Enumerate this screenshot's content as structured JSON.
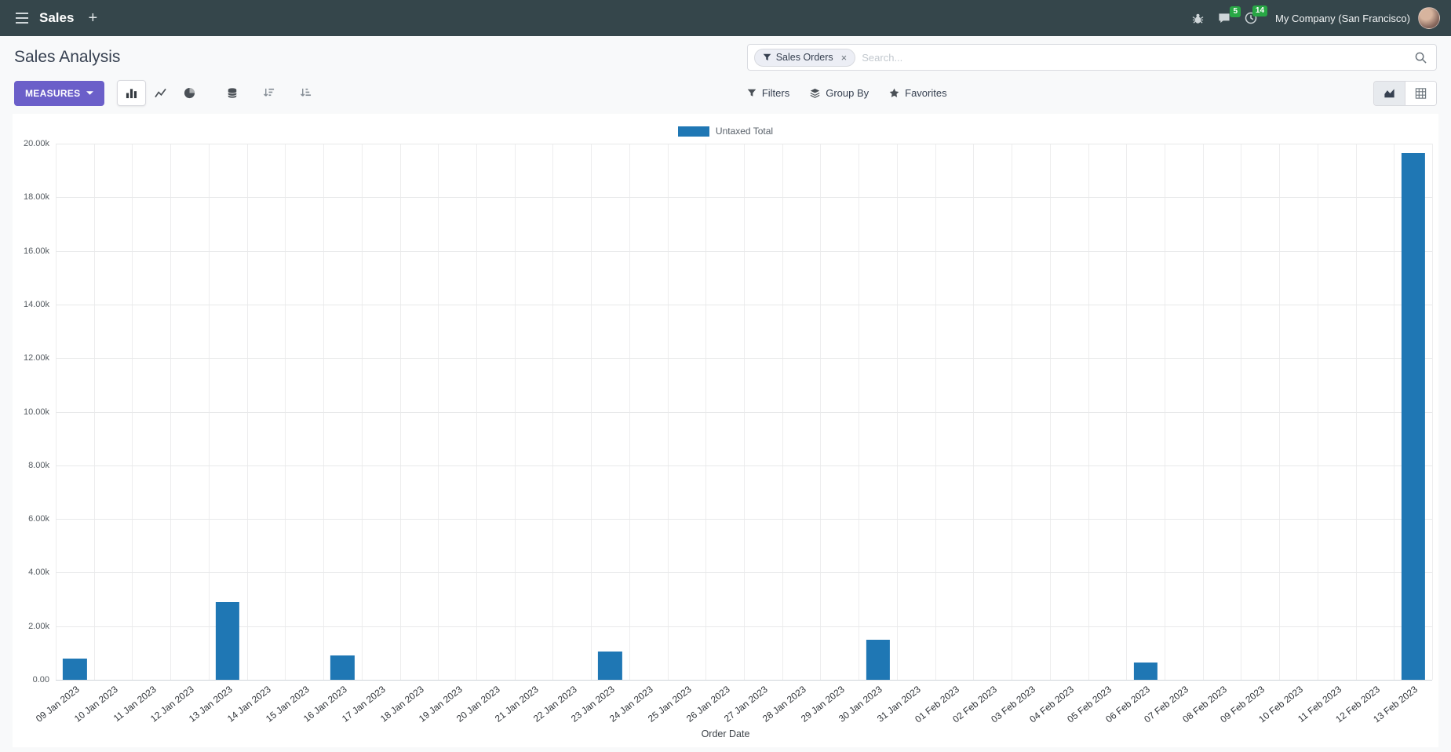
{
  "navbar": {
    "app_name": "Sales",
    "plus_label": "+",
    "messages_badge": "5",
    "activities_badge": "14",
    "company": "My Company (San Francisco)"
  },
  "control_panel": {
    "title": "Sales Analysis",
    "search": {
      "facet_label": "Sales Orders",
      "facet_remove": "×",
      "placeholder": "Search..."
    },
    "buttons": {
      "measures": "MEASURES",
      "filters": "Filters",
      "group_by": "Group By",
      "favorites": "Favorites"
    }
  },
  "chart_data": {
    "type": "bar",
    "title": "",
    "legend": "Untaxed Total",
    "series_color": "#1f77b4",
    "xlabel": "Order Date",
    "ylabel": "",
    "ylim": [
      0,
      20000
    ],
    "grid": true,
    "legend_position": "top-center",
    "y_ticks": [
      "20.00k",
      "18.00k",
      "16.00k",
      "14.00k",
      "12.00k",
      "10.00k",
      "8.00k",
      "6.00k",
      "4.00k",
      "2.00k",
      "0.00"
    ],
    "categories": [
      "09 Jan 2023",
      "10 Jan 2023",
      "11 Jan 2023",
      "12 Jan 2023",
      "13 Jan 2023",
      "14 Jan 2023",
      "15 Jan 2023",
      "16 Jan 2023",
      "17 Jan 2023",
      "18 Jan 2023",
      "19 Jan 2023",
      "20 Jan 2023",
      "21 Jan 2023",
      "22 Jan 2023",
      "23 Jan 2023",
      "24 Jan 2023",
      "25 Jan 2023",
      "26 Jan 2023",
      "27 Jan 2023",
      "28 Jan 2023",
      "29 Jan 2023",
      "30 Jan 2023",
      "31 Jan 2023",
      "01 Feb 2023",
      "02 Feb 2023",
      "03 Feb 2023",
      "04 Feb 2023",
      "05 Feb 2023",
      "06 Feb 2023",
      "07 Feb 2023",
      "08 Feb 2023",
      "09 Feb 2023",
      "10 Feb 2023",
      "11 Feb 2023",
      "12 Feb 2023",
      "13 Feb 2023"
    ],
    "series": [
      {
        "name": "Untaxed Total",
        "values": [
          800,
          0,
          0,
          0,
          2900,
          0,
          0,
          900,
          0,
          0,
          0,
          0,
          0,
          0,
          1050,
          0,
          0,
          0,
          0,
          0,
          0,
          1500,
          0,
          0,
          0,
          0,
          0,
          0,
          650,
          0,
          0,
          0,
          0,
          0,
          0,
          19650
        ]
      }
    ]
  }
}
